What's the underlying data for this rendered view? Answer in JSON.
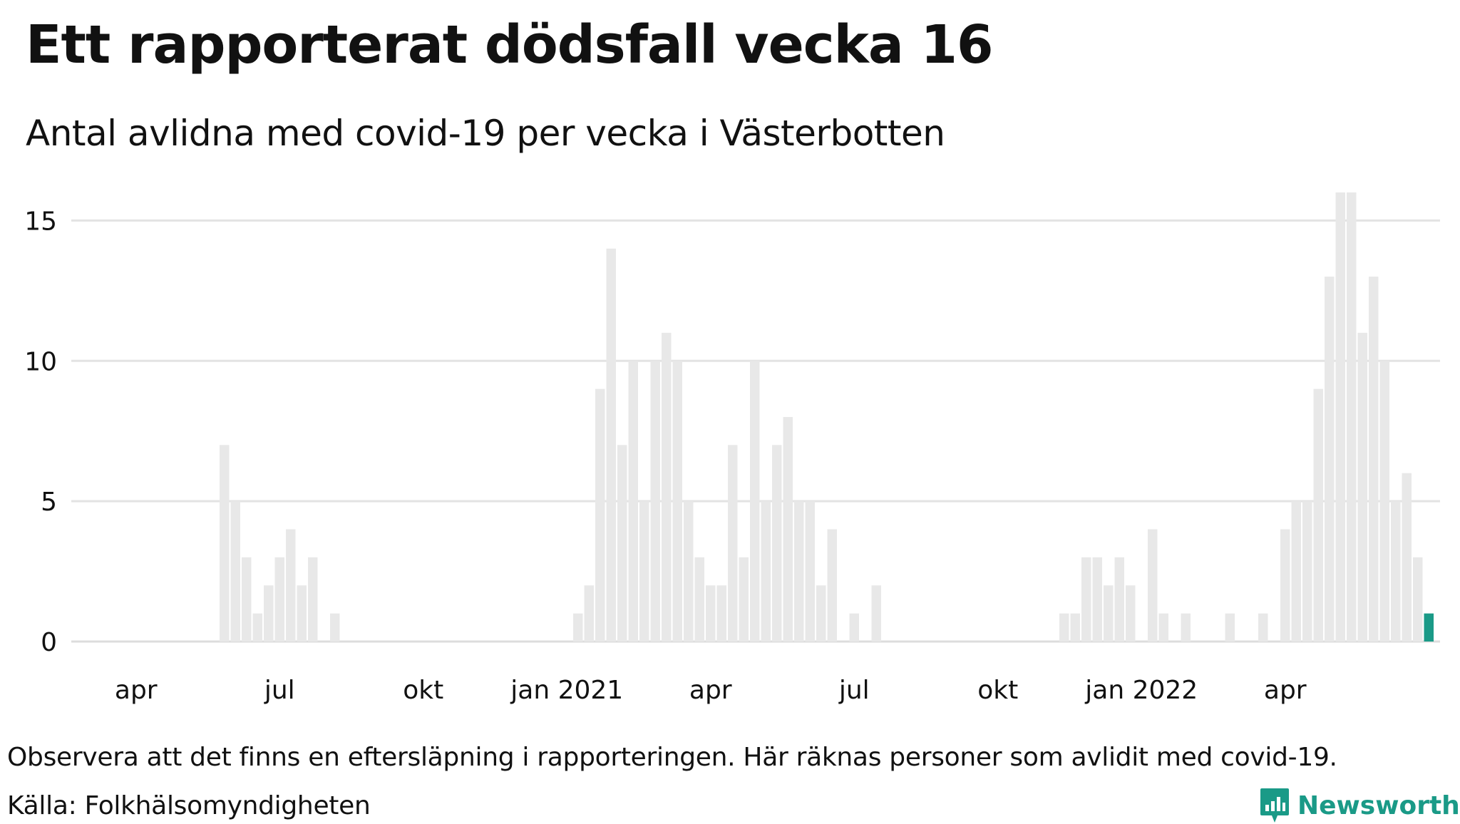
{
  "title": "Ett rapporterat dödsfall vecka 16",
  "subtitle": "Antal avlidna med covid-19 per vecka i Västerbotten",
  "note": "Observera att det finns en eftersläpning i rapporteringen. Här räknas personer som avlidit med covid-19.",
  "source": "Källa: Folkhälsomyndigheten",
  "brand": "Newsworthy",
  "colors": {
    "bar": "#e8e8e8",
    "highlight": "#1a9a87",
    "grid": "#e3e3e3",
    "baseline": "#dddddd",
    "text": "#111111"
  },
  "chart_data": {
    "type": "bar",
    "title": "Ett rapporterat dödsfall vecka 16",
    "subtitle": "Antal avlidna med covid-19 per vecka i Västerbotten",
    "ylim": [
      0,
      16
    ],
    "yticks": [
      0,
      5,
      10,
      15
    ],
    "grid": true,
    "xticks": [
      {
        "label": "apr",
        "week_index": 4
      },
      {
        "label": "jul",
        "week_index": 17
      },
      {
        "label": "okt",
        "week_index": 30
      },
      {
        "label": "jan 2021",
        "week_index": 43
      },
      {
        "label": "apr",
        "week_index": 56
      },
      {
        "label": "jul",
        "week_index": 69
      },
      {
        "label": "okt",
        "week_index": 82
      },
      {
        "label": "jan 2022",
        "week_index": 95
      },
      {
        "label": "apr",
        "week_index": 108
      }
    ],
    "values": [
      0,
      0,
      0,
      0,
      0,
      0,
      0,
      0,
      0,
      0,
      0,
      0,
      7,
      5,
      3,
      1,
      2,
      3,
      4,
      2,
      3,
      0,
      1,
      0,
      0,
      0,
      0,
      0,
      0,
      0,
      0,
      0,
      0,
      0,
      0,
      0,
      0,
      0,
      0,
      0,
      0,
      0,
      0,
      0,
      1,
      2,
      9,
      14,
      7,
      10,
      5,
      10,
      11,
      10,
      5,
      3,
      2,
      2,
      7,
      3,
      10,
      5,
      7,
      8,
      5,
      5,
      2,
      4,
      0,
      1,
      0,
      2,
      0,
      0,
      0,
      0,
      0,
      0,
      0,
      0,
      0,
      0,
      0,
      0,
      0,
      0,
      0,
      0,
      1,
      1,
      3,
      3,
      2,
      3,
      2,
      0,
      4,
      1,
      0,
      1,
      0,
      0,
      0,
      1,
      0,
      0,
      1,
      0,
      4,
      5,
      5,
      9,
      13,
      16,
      16,
      11,
      13,
      10,
      5,
      6,
      3,
      1
    ],
    "highlight_index": 121
  }
}
